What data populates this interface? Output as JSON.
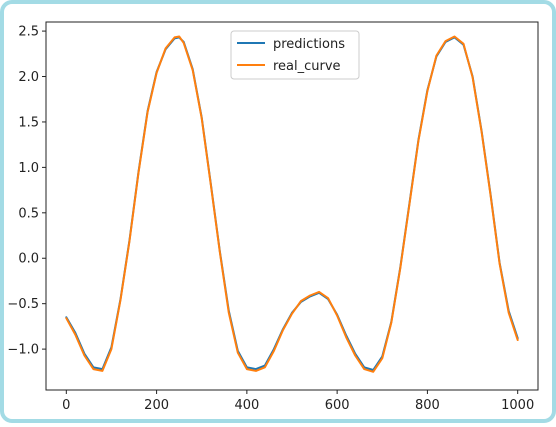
{
  "chart_data": {
    "type": "line",
    "title": "",
    "xlabel": "",
    "ylabel": "",
    "xlim": [
      -45,
      1045
    ],
    "ylim": [
      -1.45,
      2.6
    ],
    "xticks": [
      0,
      200,
      400,
      600,
      800,
      1000
    ],
    "xtick_labels": [
      "0",
      "200",
      "400",
      "600",
      "800",
      "1000"
    ],
    "yticks": [
      -1.0,
      -0.5,
      0.0,
      0.5,
      1.0,
      1.5,
      2.0,
      2.5
    ],
    "ytick_labels": [
      "−1.0",
      "−0.5",
      "0.0",
      "0.5",
      "1.0",
      "1.5",
      "2.0",
      "2.5"
    ],
    "grid": false,
    "legend_position": "top-center",
    "series": [
      {
        "name": "predictions",
        "color": "#1f77b4",
        "x": [
          0,
          20,
          40,
          60,
          80,
          100,
          120,
          140,
          160,
          180,
          200,
          220,
          240,
          250,
          260,
          280,
          300,
          320,
          340,
          360,
          380,
          400,
          420,
          440,
          460,
          480,
          500,
          520,
          540,
          560,
          580,
          600,
          620,
          640,
          660,
          680,
          700,
          720,
          740,
          760,
          780,
          800,
          820,
          840,
          860,
          880,
          900,
          920,
          940,
          960,
          980,
          1000
        ],
        "values": [
          -0.65,
          -0.82,
          -1.05,
          -1.2,
          -1.22,
          -0.98,
          -0.45,
          0.2,
          0.95,
          1.62,
          2.05,
          2.3,
          2.42,
          2.43,
          2.38,
          2.08,
          1.55,
          0.82,
          0.08,
          -0.58,
          -1.02,
          -1.2,
          -1.22,
          -1.18,
          -1.0,
          -0.78,
          -0.6,
          -0.48,
          -0.42,
          -0.38,
          -0.45,
          -0.62,
          -0.85,
          -1.05,
          -1.2,
          -1.23,
          -1.08,
          -0.7,
          -0.1,
          0.6,
          1.3,
          1.85,
          2.22,
          2.38,
          2.43,
          2.35,
          2.0,
          1.4,
          0.7,
          -0.05,
          -0.58,
          -0.88
        ]
      },
      {
        "name": "real_curve",
        "color": "#ff7f0e",
        "x": [
          0,
          20,
          40,
          60,
          80,
          100,
          120,
          140,
          160,
          180,
          200,
          220,
          240,
          250,
          260,
          280,
          300,
          320,
          340,
          360,
          380,
          400,
          420,
          440,
          460,
          480,
          500,
          520,
          540,
          560,
          580,
          600,
          620,
          640,
          660,
          680,
          700,
          720,
          740,
          760,
          780,
          800,
          820,
          840,
          860,
          880,
          900,
          920,
          940,
          960,
          980,
          1000
        ],
        "values": [
          -0.66,
          -0.84,
          -1.07,
          -1.22,
          -1.24,
          -1.0,
          -0.46,
          0.19,
          0.94,
          1.61,
          2.04,
          2.31,
          2.43,
          2.44,
          2.37,
          2.07,
          1.54,
          0.81,
          0.07,
          -0.6,
          -1.04,
          -1.22,
          -1.24,
          -1.2,
          -1.02,
          -0.79,
          -0.61,
          -0.47,
          -0.41,
          -0.37,
          -0.44,
          -0.63,
          -0.87,
          -1.07,
          -1.22,
          -1.25,
          -1.1,
          -0.71,
          -0.11,
          0.59,
          1.29,
          1.84,
          2.23,
          2.39,
          2.44,
          2.36,
          1.99,
          1.39,
          0.69,
          -0.06,
          -0.6,
          -0.9
        ]
      }
    ]
  }
}
